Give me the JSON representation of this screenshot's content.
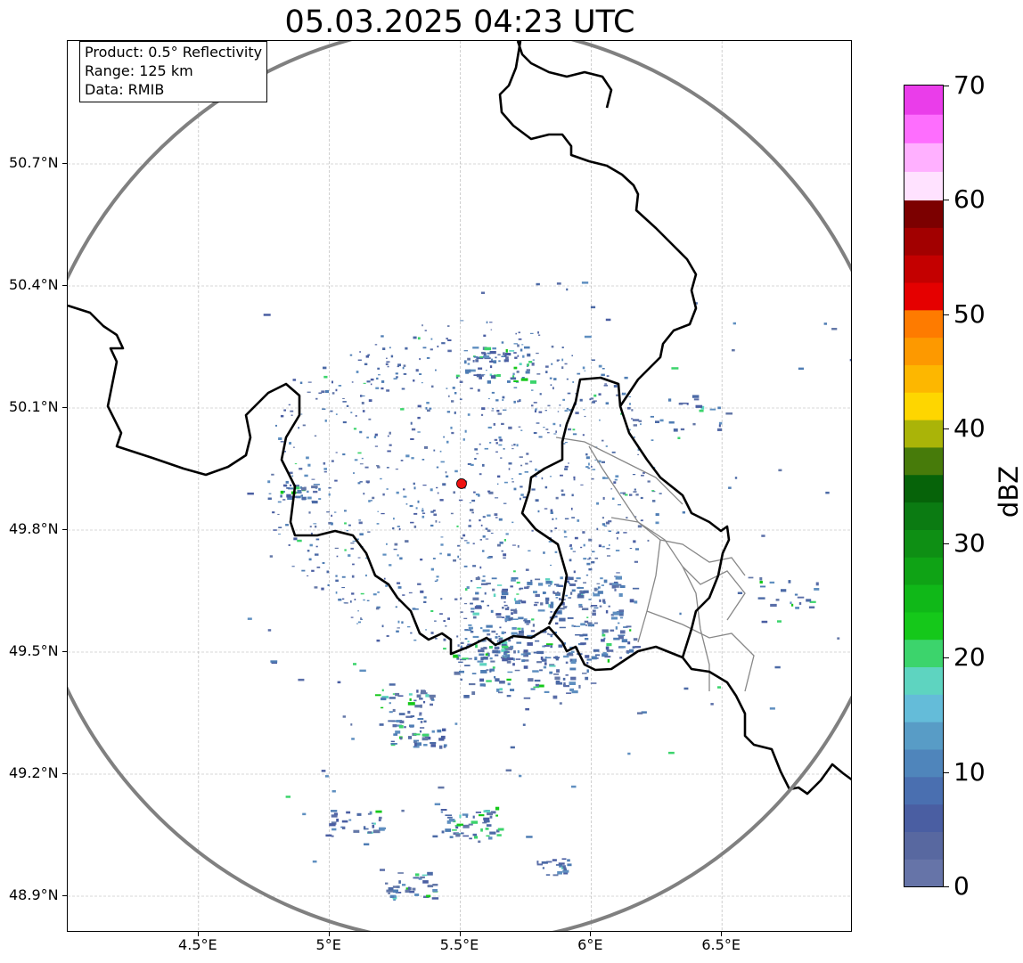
{
  "title": "05.03.2025 04:23 UTC",
  "info_box": {
    "product": "Product: 0.5° Reflectivity",
    "range": "Range: 125 km",
    "data": "Data: RMIB"
  },
  "map": {
    "lon_range": [
      4.0,
      7.0
    ],
    "lat_range": [
      48.8,
      51.0
    ],
    "lat_ticks": [
      {
        "value": 50.7,
        "label": "50.7°N"
      },
      {
        "value": 50.4,
        "label": "50.4°N"
      },
      {
        "value": 50.1,
        "label": "50.1°N"
      },
      {
        "value": 49.8,
        "label": "49.8°N"
      },
      {
        "value": 49.5,
        "label": "49.5°N"
      },
      {
        "value": 49.2,
        "label": "49.2°N"
      },
      {
        "value": 48.9,
        "label": "48.9°N"
      }
    ],
    "lon_ticks": [
      {
        "value": 4.5,
        "label": "4.5°E"
      },
      {
        "value": 5.0,
        "label": "5°E"
      },
      {
        "value": 5.5,
        "label": "5.5°E"
      },
      {
        "value": 6.0,
        "label": "6°E"
      },
      {
        "value": 6.5,
        "label": "6.5°E"
      }
    ],
    "radar_site": {
      "lon": 5.505,
      "lat": 49.914,
      "color": "#ee1111"
    },
    "range_ring_color": "#808080",
    "border_color": "#000000",
    "region_border_color": "#888888",
    "gridline_color": "#b0b0b0"
  },
  "colorbar": {
    "label": "dBZ",
    "min": 0,
    "max": 70,
    "ticks": [
      {
        "value": 0,
        "label": "0"
      },
      {
        "value": 10,
        "label": "10"
      },
      {
        "value": 20,
        "label": "20"
      },
      {
        "value": 30,
        "label": "30"
      },
      {
        "value": 40,
        "label": "40"
      },
      {
        "value": 50,
        "label": "50"
      },
      {
        "value": 60,
        "label": "60"
      },
      {
        "value": 70,
        "label": "70"
      }
    ],
    "colors": [
      "#6674a8",
      "#5868a0",
      "#4a5ea2",
      "#4a6fb0",
      "#4f85bb",
      "#589cc6",
      "#64bcd9",
      "#5ed4c0",
      "#3cd46c",
      "#15c81a",
      "#10b818",
      "#0fa315",
      "#0e8f14",
      "#0b7b12",
      "#066309",
      "#477b0a",
      "#aab408",
      "#fed600",
      "#fdb700",
      "#fd9900",
      "#fe7b00",
      "#e50000",
      "#c40000",
      "#a20000",
      "#7c0000",
      "#ffe2ff",
      "#ffb0ff",
      "#fe6efe",
      "#ea3dea"
    ]
  }
}
